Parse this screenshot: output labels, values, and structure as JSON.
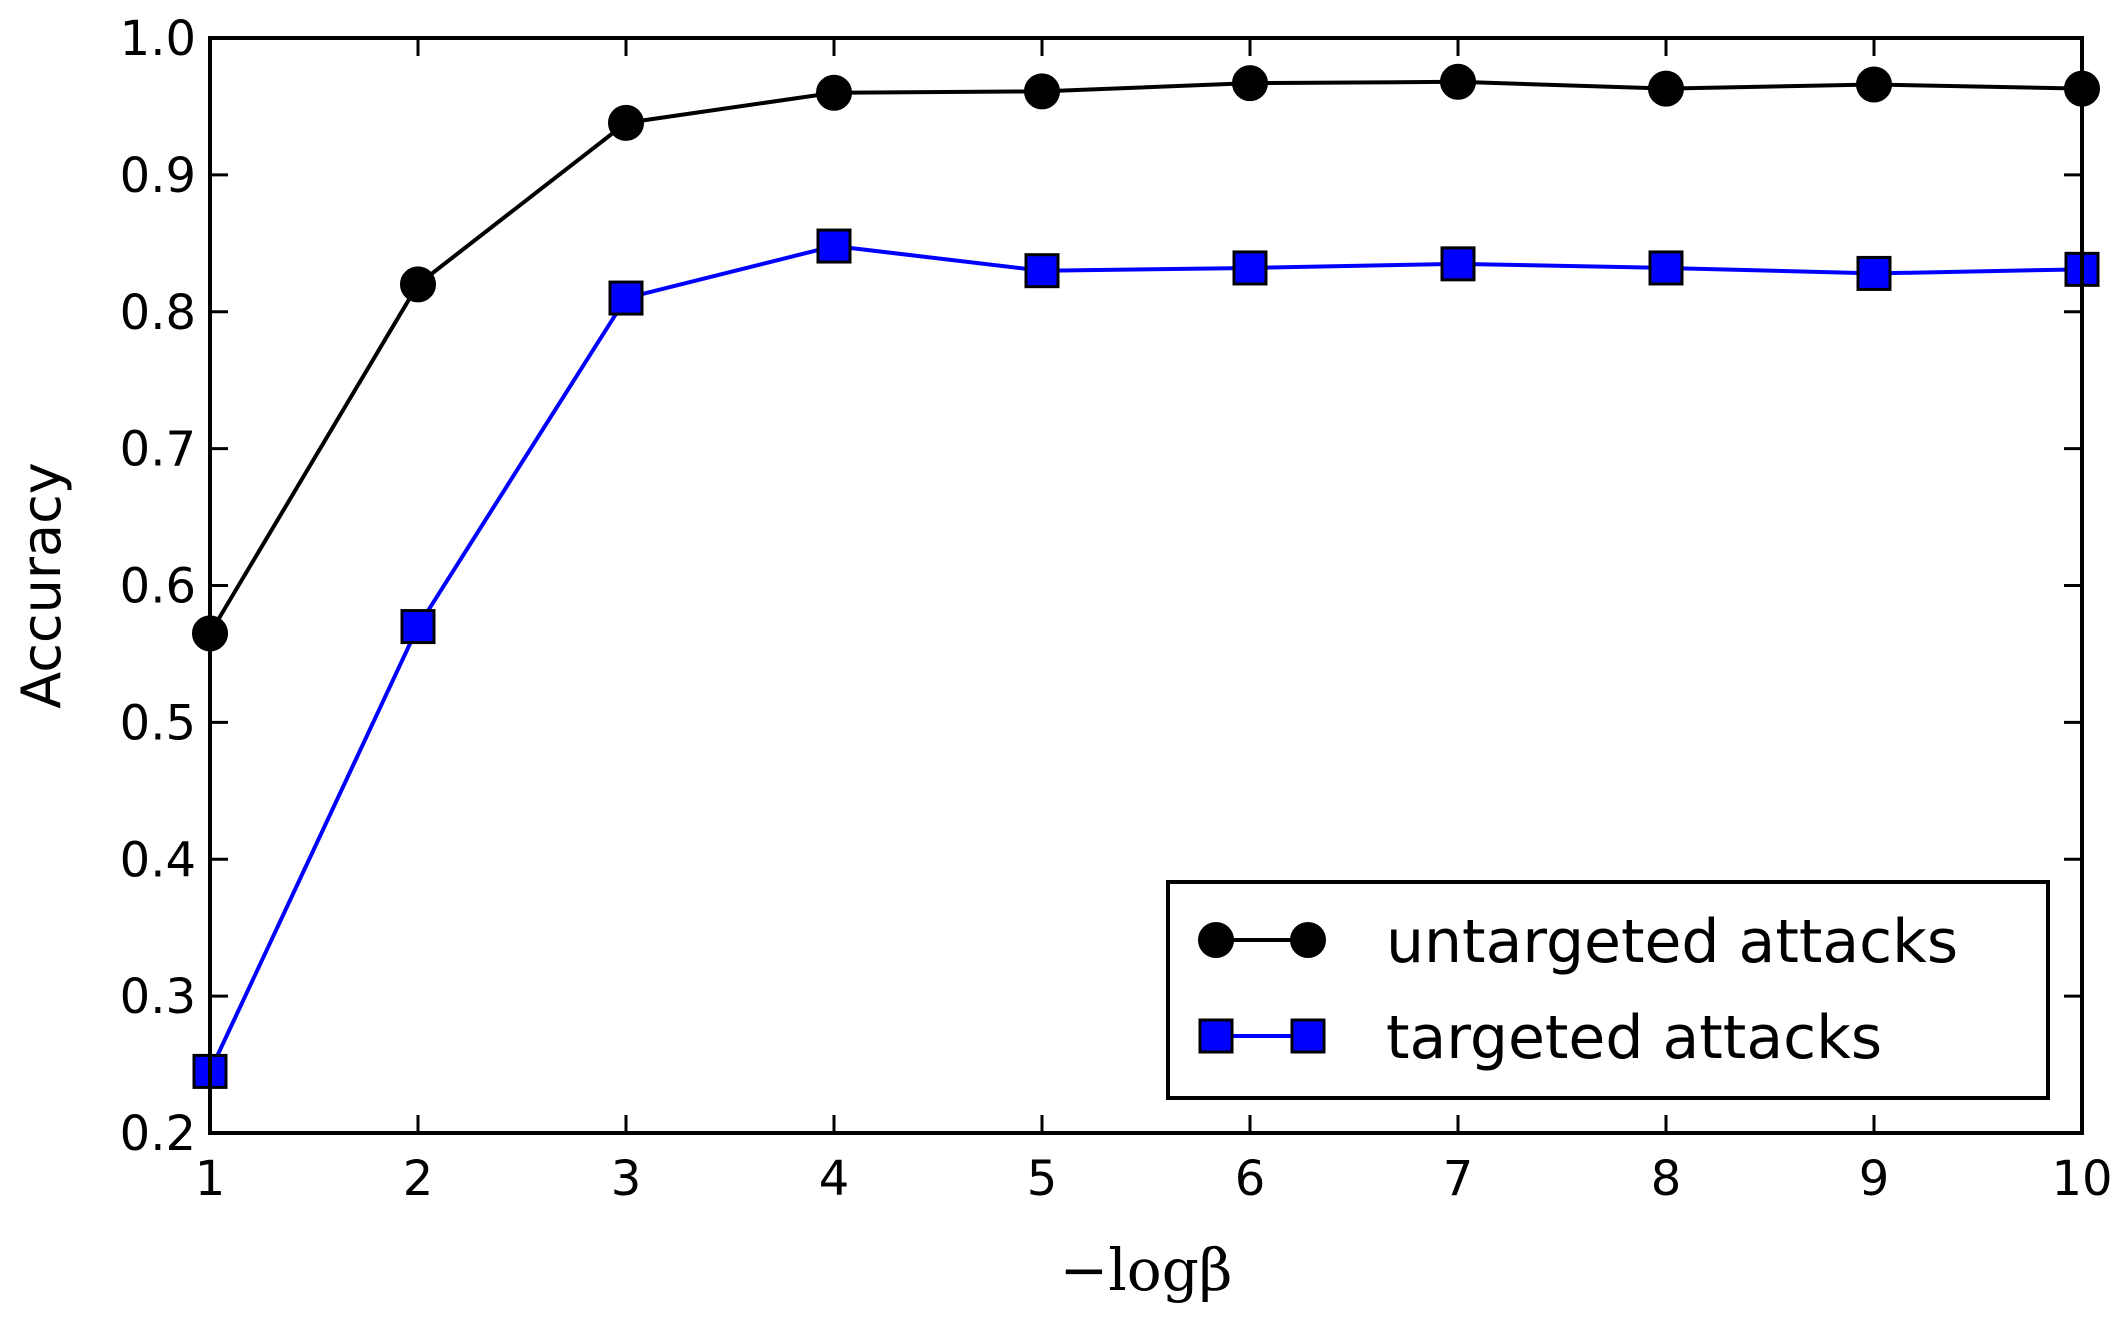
{
  "chart_data": {
    "type": "line",
    "title": "",
    "xlabel": "−logβ",
    "ylabel": "Accuracy",
    "xlim": [
      1,
      10
    ],
    "ylim": [
      0.2,
      1.0
    ],
    "xticks": [
      "1",
      "2",
      "3",
      "4",
      "5",
      "6",
      "7",
      "8",
      "9",
      "10"
    ],
    "yticks": [
      "0.2",
      "0.3",
      "0.4",
      "0.5",
      "0.6",
      "0.7",
      "0.8",
      "0.9",
      "1.0"
    ],
    "grid": false,
    "legend_position": "bottom-right",
    "x": [
      1,
      2,
      3,
      4,
      5,
      6,
      7,
      8,
      9,
      10
    ],
    "series": [
      {
        "name": "untargeted attacks",
        "color": "#000000",
        "marker": "circle",
        "values": [
          0.565,
          0.82,
          0.938,
          0.96,
          0.961,
          0.967,
          0.968,
          0.963,
          0.966,
          0.963
        ]
      },
      {
        "name": "targeted attacks",
        "color": "#0000ff",
        "marker": "square",
        "values": [
          0.245,
          0.57,
          0.81,
          0.848,
          0.83,
          0.832,
          0.835,
          0.832,
          0.828,
          0.831
        ]
      }
    ]
  }
}
